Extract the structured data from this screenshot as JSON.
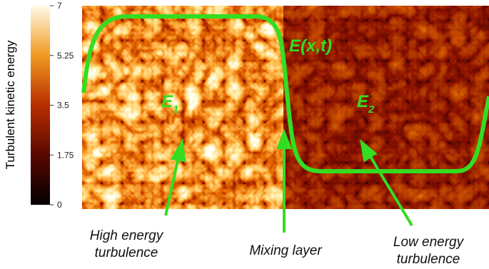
{
  "colorbar": {
    "label": "Turbulent kinetic energy",
    "ticks": [
      0,
      1.75,
      3.5,
      5.25,
      7
    ]
  },
  "curve_label": "E(x,t)",
  "regions": [
    {
      "base": "E",
      "sub": "1"
    },
    {
      "base": "E",
      "sub": "2"
    }
  ],
  "annotations": [
    {
      "lines": [
        "High energy",
        "turbulence"
      ]
    },
    {
      "lines": [
        "Mixing layer"
      ]
    },
    {
      "lines": [
        "Low energy",
        "turbulence"
      ]
    }
  ]
}
